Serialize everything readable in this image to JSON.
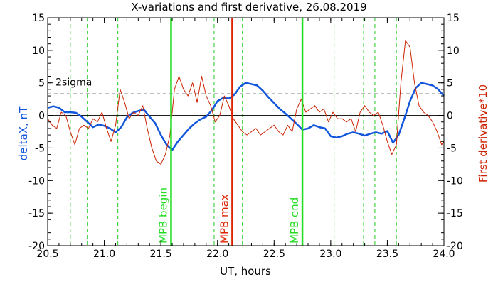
{
  "chart_data": {
    "type": "line",
    "title": "X-variations and first derivative, 26.08.2019",
    "xlabel": "UT, hours",
    "ylabel": "deltaX, nT",
    "ylabel_right": "First derivative*10",
    "xlim": [
      20.5,
      24.0
    ],
    "ylim": [
      -20,
      15
    ],
    "y2lim": [
      -20,
      15
    ],
    "x_ticks": [
      "20.5",
      "21.0",
      "21.5",
      "22.0",
      "22.5",
      "23.0",
      "23.5",
      "24.0"
    ],
    "y_ticks": [
      "15",
      "10",
      "5",
      "0",
      "-5",
      "-10",
      "-15",
      "-20"
    ],
    "threshold": {
      "label": "2sigma",
      "value": 3.3
    },
    "zero_line": 0,
    "markers": [
      {
        "label": "MPB begin",
        "x": 21.59,
        "color": "#22dd22"
      },
      {
        "label": "MPB max",
        "x": 22.13,
        "color": "#dd2200"
      },
      {
        "label": "MPB end",
        "x": 22.75,
        "color": "#22dd22"
      }
    ],
    "dashed_verticals": [
      20.7,
      20.85,
      21.12,
      21.97,
      22.22,
      23.03,
      23.29,
      23.39,
      23.58
    ],
    "series": [
      {
        "axis": "left",
        "color": "#1155dd",
        "x": [
          20.5,
          20.55,
          20.6,
          20.65,
          20.7,
          20.75,
          20.8,
          20.85,
          20.9,
          20.95,
          21.0,
          21.05,
          21.1,
          21.15,
          21.2,
          21.25,
          21.3,
          21.35,
          21.4,
          21.45,
          21.5,
          21.55,
          21.6,
          21.65,
          21.7,
          21.75,
          21.8,
          21.85,
          21.9,
          21.95,
          22.0,
          22.05,
          22.1,
          22.15,
          22.2,
          22.25,
          22.3,
          22.35,
          22.4,
          22.45,
          22.5,
          22.55,
          22.6,
          22.65,
          22.7,
          22.75,
          22.8,
          22.85,
          22.9,
          22.95,
          23.0,
          23.05,
          23.1,
          23.15,
          23.2,
          23.25,
          23.3,
          23.35,
          23.4,
          23.45,
          23.5,
          23.55,
          23.6,
          23.65,
          23.7,
          23.75,
          23.8,
          23.85,
          23.9,
          23.95,
          24.0
        ],
        "values": [
          1.2,
          1.4,
          1.2,
          0.5,
          0.5,
          0.4,
          -0.2,
          -1.0,
          -1.8,
          -1.4,
          -1.6,
          -2.0,
          -2.6,
          -1.8,
          -0.3,
          0.4,
          0.7,
          0.9,
          -0.2,
          -1.2,
          -3.0,
          -4.5,
          -5.3,
          -4.0,
          -3.0,
          -2.0,
          -1.2,
          -0.6,
          -0.2,
          0.8,
          2.2,
          2.7,
          2.6,
          3.2,
          4.4,
          5.0,
          4.8,
          4.6,
          3.8,
          2.8,
          1.9,
          1.0,
          0.3,
          -0.5,
          -1.3,
          -2.2,
          -2.0,
          -1.5,
          -1.8,
          -2.0,
          -3.2,
          -3.4,
          -3.2,
          -2.8,
          -2.6,
          -2.8,
          -3.1,
          -2.8,
          -2.6,
          -2.8,
          -2.4,
          -4.2,
          -3.0,
          -0.5,
          2.2,
          4.2,
          5.0,
          4.8,
          4.6,
          4.0,
          3.0
        ]
      },
      {
        "axis": "right",
        "color": "#cc2200",
        "x": [
          20.5,
          20.54,
          20.58,
          20.62,
          20.66,
          20.7,
          20.74,
          20.78,
          20.82,
          20.86,
          20.9,
          20.94,
          20.98,
          21.02,
          21.06,
          21.1,
          21.14,
          21.18,
          21.22,
          21.26,
          21.3,
          21.34,
          21.38,
          21.42,
          21.46,
          21.5,
          21.54,
          21.58,
          21.62,
          21.66,
          21.7,
          21.74,
          21.78,
          21.82,
          21.86,
          21.9,
          21.94,
          21.98,
          22.02,
          22.06,
          22.1,
          22.14,
          22.18,
          22.22,
          22.26,
          22.3,
          22.34,
          22.38,
          22.42,
          22.46,
          22.5,
          22.54,
          22.58,
          22.62,
          22.66,
          22.7,
          22.74,
          22.78,
          22.82,
          22.86,
          22.9,
          22.94,
          22.98,
          23.02,
          23.06,
          23.1,
          23.14,
          23.18,
          23.22,
          23.26,
          23.3,
          23.34,
          23.38,
          23.42,
          23.46,
          23.5,
          23.54,
          23.58,
          23.62,
          23.66,
          23.7,
          23.74,
          23.78,
          23.82,
          23.86,
          23.9,
          23.94,
          23.98,
          24.0
        ],
        "values": [
          -0.5,
          -1.5,
          -2.0,
          0.5,
          0.0,
          -2.5,
          -4.5,
          -2.0,
          -1.5,
          -2.0,
          -0.5,
          -1.0,
          0.5,
          -2.0,
          -4.0,
          -1.5,
          4.0,
          2.0,
          -0.5,
          0.5,
          0.0,
          1.5,
          -2.0,
          -5.0,
          -7.0,
          -7.5,
          -6.0,
          -3.0,
          4.0,
          6.0,
          4.0,
          3.0,
          5.0,
          2.0,
          6.0,
          3.0,
          1.5,
          -1.0,
          0.0,
          3.0,
          1.5,
          -0.5,
          -1.5,
          -2.5,
          -3.0,
          -2.5,
          -2.0,
          -3.0,
          -2.5,
          -2.0,
          -1.5,
          -2.5,
          -3.0,
          -1.5,
          -2.5,
          1.0,
          2.5,
          0.5,
          1.0,
          1.5,
          0.5,
          1.0,
          -1.0,
          0.5,
          -0.5,
          -0.5,
          -1.0,
          -0.5,
          -2.5,
          0.5,
          1.5,
          0.5,
          0.0,
          0.5,
          -1.5,
          -4.0,
          -6.0,
          -4.5,
          5.0,
          11.5,
          10.5,
          5.0,
          1.5,
          0.5,
          0.0,
          -1.0,
          -2.5,
          -4.5,
          -4.0
        ]
      }
    ]
  }
}
